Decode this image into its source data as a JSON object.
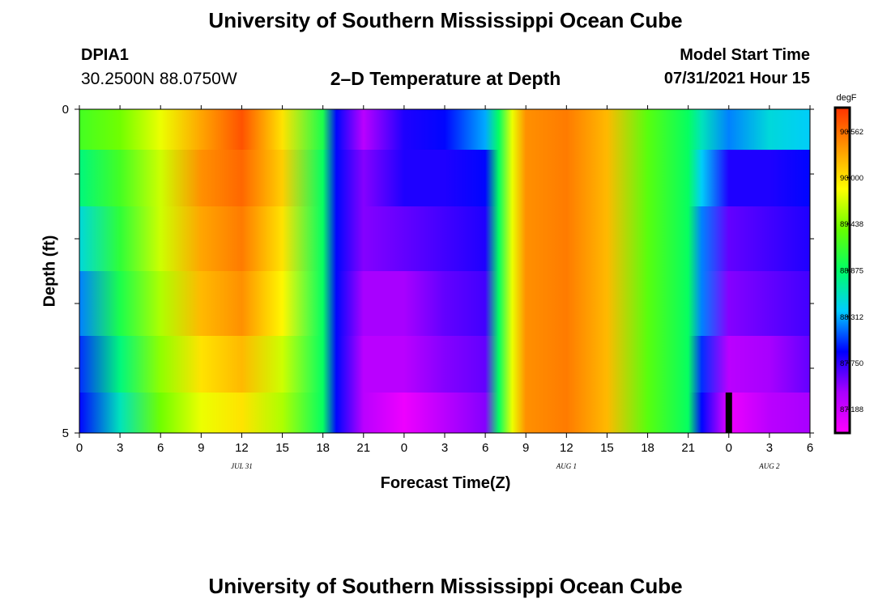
{
  "header": {
    "title": "University of Southern Mississippi Ocean Cube",
    "station": "DPIA1",
    "coords": "30.2500N  88.0750W",
    "chart_title": "2–D Temperature at Depth",
    "model_label": "Model Start Time",
    "model_time": "07/31/2021 Hour 15"
  },
  "footer": {
    "title": "University of Southern Mississippi Ocean Cube"
  },
  "colors": {
    "palette": [
      "#ff00ff",
      "#aa00ff",
      "#0000ff",
      "#00ccff",
      "#00ff66",
      "#66ff00",
      "#ffff00",
      "#ff9900",
      "#ff3300"
    ]
  },
  "chart_data": {
    "type": "heatmap",
    "title": "2–D Temperature at Depth",
    "xlabel": "Forecast Time(Z)",
    "ylabel": "Depth (ft)",
    "x_range_hours": [
      0,
      54
    ],
    "x_ticks": [
      "0",
      "3",
      "6",
      "9",
      "12",
      "15",
      "18",
      "21",
      "0",
      "3",
      "6",
      "9",
      "12",
      "15",
      "18",
      "21",
      "0",
      "3",
      "6"
    ],
    "date_labels": [
      {
        "text": "JUL 31",
        "hour": 12
      },
      {
        "text": "AUG 1",
        "hour": 36
      },
      {
        "text": "AUG 2",
        "hour": 51
      }
    ],
    "y_ticks": [
      "0",
      "5"
    ],
    "depth_range_ft": [
      0,
      5
    ],
    "colorbar": {
      "unit": "degF",
      "min": 86.9,
      "max": 90.85,
      "labels": [
        "90.562",
        "90.000",
        "89.438",
        "88.875",
        "88.312",
        "87.750",
        "87.188"
      ]
    },
    "marker_hour": 48,
    "depth_levels_ft": [
      0.25,
      1.0,
      2.0,
      3.0,
      4.0,
      4.75
    ],
    "keyframes_hours": [
      0,
      3,
      6,
      9,
      12,
      15,
      18,
      19,
      21,
      24,
      27,
      30,
      31,
      32,
      33,
      36,
      39,
      42,
      45,
      46,
      48,
      51,
      54
    ],
    "temperature_degF": [
      [
        89.2,
        89.4,
        89.8,
        90.3,
        90.7,
        90.0,
        89.0,
        87.9,
        87.3,
        87.8,
        87.9,
        88.3,
        88.9,
        89.8,
        90.4,
        90.5,
        90.2,
        89.3,
        88.9,
        88.6,
        88.2,
        88.5,
        88.4
      ],
      [
        88.8,
        89.2,
        89.7,
        90.4,
        90.6,
        90.1,
        88.9,
        87.9,
        87.5,
        87.8,
        87.8,
        87.9,
        88.9,
        89.8,
        90.4,
        90.5,
        90.2,
        89.3,
        88.9,
        88.4,
        87.8,
        87.8,
        87.9
      ],
      [
        88.5,
        89.1,
        89.7,
        90.3,
        90.5,
        90.0,
        88.9,
        87.9,
        87.5,
        87.6,
        87.7,
        87.8,
        88.9,
        89.8,
        90.4,
        90.5,
        90.2,
        89.3,
        88.9,
        88.2,
        87.6,
        87.7,
        87.8
      ],
      [
        88.2,
        89.0,
        89.6,
        90.2,
        90.4,
        89.9,
        88.9,
        87.9,
        87.4,
        87.4,
        87.6,
        87.7,
        88.9,
        89.8,
        90.4,
        90.5,
        90.2,
        89.3,
        88.9,
        88.2,
        87.5,
        87.6,
        87.7
      ],
      [
        88.0,
        88.8,
        89.5,
        90.0,
        90.2,
        89.7,
        88.9,
        87.9,
        87.3,
        87.3,
        87.5,
        87.6,
        88.9,
        89.8,
        90.4,
        90.5,
        90.2,
        89.3,
        88.9,
        88.0,
        87.3,
        87.4,
        87.6
      ],
      [
        87.9,
        88.6,
        89.4,
        89.8,
        90.0,
        89.6,
        88.9,
        87.9,
        87.3,
        87.0,
        87.3,
        87.5,
        88.9,
        89.8,
        90.4,
        90.5,
        90.2,
        89.3,
        88.9,
        87.9,
        87.0,
        87.3,
        87.4
      ]
    ]
  }
}
